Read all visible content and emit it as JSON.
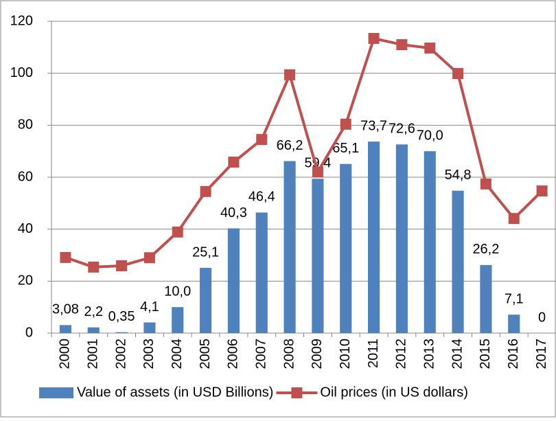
{
  "chart_data": {
    "type": "bar",
    "categories": [
      "2000",
      "2001",
      "2002",
      "2003",
      "2004",
      "2005",
      "2006",
      "2007",
      "2008",
      "2009",
      "2010",
      "2011",
      "2012",
      "2013",
      "2014",
      "2015",
      "2016",
      "2017"
    ],
    "series": [
      {
        "name": "Value of assets (in USD Billions)",
        "type": "bar",
        "color": "#4f81bd",
        "values": [
          3.08,
          2.2,
          0.35,
          4.1,
          10.0,
          25.1,
          40.3,
          46.4,
          66.2,
          59.4,
          65.1,
          73.7,
          72.6,
          70.0,
          54.8,
          26.2,
          7.1,
          0
        ],
        "value_labels": [
          "3,08",
          "2,2",
          "0,35",
          "4,1",
          "10,0",
          "25,1",
          "40,3",
          "46,4",
          "66,2",
          "59,4",
          "65,1",
          "73,7",
          "72,6",
          "70,0",
          "54,8",
          "26,2",
          "7,1",
          "0"
        ]
      },
      {
        "name": "Oil prices (in US dollars)",
        "type": "line",
        "color": "#c0504d",
        "values": [
          29.1,
          25.4,
          25.9,
          29.0,
          38.9,
          54.5,
          65.8,
          74.5,
          99.4,
          62.0,
          80.4,
          113.4,
          111.0,
          109.7,
          99.9,
          57.4,
          44.1,
          54.7
        ]
      }
    ],
    "ylim": [
      0,
      120
    ],
    "yticks": [
      0,
      20,
      40,
      60,
      80,
      100,
      120
    ],
    "grid": true,
    "legend": "bottom"
  }
}
